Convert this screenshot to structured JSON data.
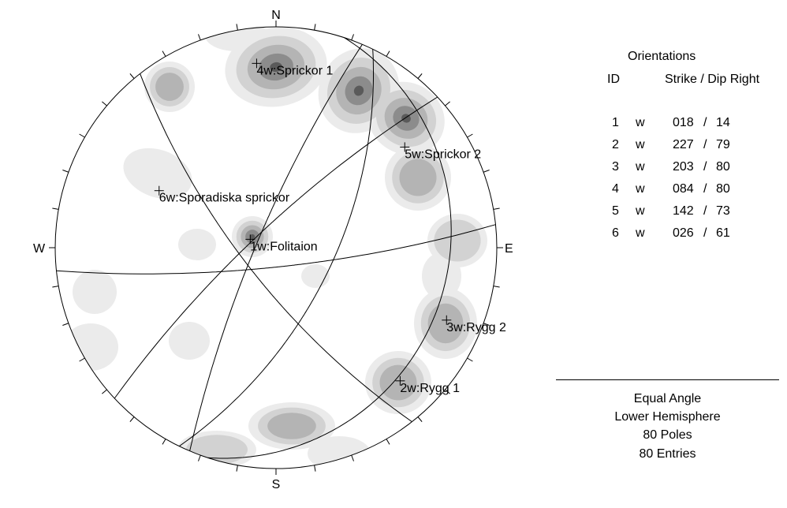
{
  "net": {
    "north": "N",
    "south": "S",
    "east": "E",
    "west": "W"
  },
  "legend": {
    "title": "Orientations",
    "header_id": "ID",
    "header_strike_dip": "Strike / Dip Right",
    "rows": [
      {
        "id": "1",
        "type": "w",
        "strike": "018",
        "dip": "14"
      },
      {
        "id": "2",
        "type": "w",
        "strike": "227",
        "dip": "79"
      },
      {
        "id": "3",
        "type": "w",
        "strike": "203",
        "dip": "80"
      },
      {
        "id": "4",
        "type": "w",
        "strike": "084",
        "dip": "80"
      },
      {
        "id": "5",
        "type": "w",
        "strike": "142",
        "dip": "73"
      },
      {
        "id": "6",
        "type": "w",
        "strike": "026",
        "dip": "61"
      }
    ]
  },
  "info": {
    "projection": "Equal Angle",
    "hemisphere": "Lower Hemisphere",
    "poles": "80 Poles",
    "entries": "80 Entries"
  },
  "sets": [
    {
      "label": "1w:Folitaion",
      "strike": 18,
      "dip": 14
    },
    {
      "label": "2w:Rygg 1",
      "strike": 227,
      "dip": 79
    },
    {
      "label": "3w:Rygg 2",
      "strike": 203,
      "dip": 80
    },
    {
      "label": "4w:Sprickor 1",
      "strike": 84,
      "dip": 80
    },
    {
      "label": "5w:Sprickor 2",
      "strike": 142,
      "dip": 73
    },
    {
      "label": "6w:Sporadiska sprickor",
      "strike": 26,
      "dip": 61
    }
  ],
  "contour_colors": [
    "#ebebeb",
    "#d2d2d2",
    "#b4b4b4",
    "#8c8c8c",
    "#5a5a5a"
  ]
}
